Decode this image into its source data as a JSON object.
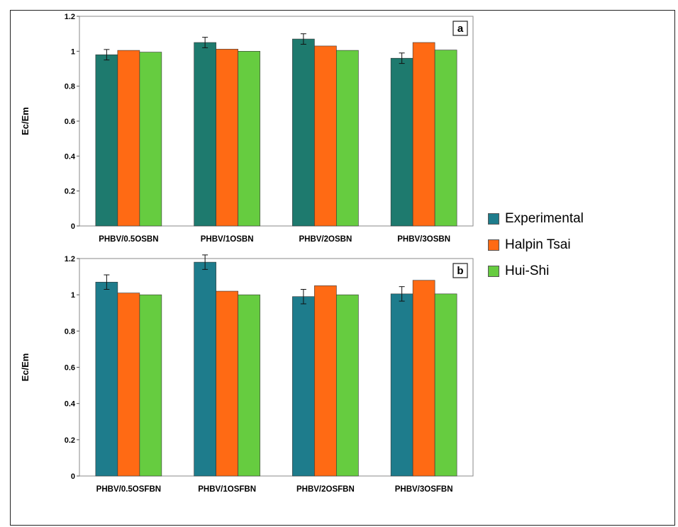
{
  "legend": [
    {
      "name": "Experimental",
      "color": "#1e7c8c"
    },
    {
      "name": "Halpin Tsai",
      "color": "#ff6a14"
    },
    {
      "name": "Hui-Shi",
      "color": "#66cc40"
    }
  ],
  "chart_data": [
    {
      "type": "bar",
      "panel_label": "a",
      "ylabel": "Ec/Em",
      "ylim": [
        0,
        1.2
      ],
      "yticks": [
        "0",
        "0.2",
        "0.4",
        "0.6",
        "0.8",
        "1",
        "1.2"
      ],
      "categories": [
        "PHBV/0.5OSBN",
        "PHBV/1OSBN",
        "PHBV/2OSBN",
        "PHBV/3OSBN"
      ],
      "experimental_color": "#1e7a6e",
      "series": [
        {
          "name": "Experimental",
          "values": [
            0.98,
            1.05,
            1.07,
            0.96
          ],
          "error": [
            0.03,
            0.03,
            0.03,
            0.03
          ]
        },
        {
          "name": "Halpin Tsai",
          "values": [
            1.005,
            1.012,
            1.03,
            1.05
          ]
        },
        {
          "name": "Hui-Shi",
          "values": [
            0.995,
            1.0,
            1.005,
            1.007
          ]
        }
      ]
    },
    {
      "type": "bar",
      "panel_label": "b",
      "ylabel": "Ec/Em",
      "ylim": [
        0,
        1.2
      ],
      "yticks": [
        "0",
        "0.2",
        "0.4",
        "0.6",
        "0.8",
        "1",
        "1.2"
      ],
      "categories": [
        "PHBV/0.5OSFBN",
        "PHBV/1OSFBN",
        "PHBV/2OSFBN",
        "PHBV/3OSFBN"
      ],
      "experimental_color": "#1e7c8c",
      "series": [
        {
          "name": "Experimental",
          "values": [
            1.07,
            1.18,
            0.99,
            1.005
          ],
          "error": [
            0.04,
            0.04,
            0.04,
            0.04
          ]
        },
        {
          "name": "Halpin Tsai",
          "values": [
            1.01,
            1.02,
            1.05,
            1.08
          ]
        },
        {
          "name": "Hui-Shi",
          "values": [
            1.0,
            1.0,
            1.0,
            1.005
          ]
        }
      ]
    }
  ]
}
